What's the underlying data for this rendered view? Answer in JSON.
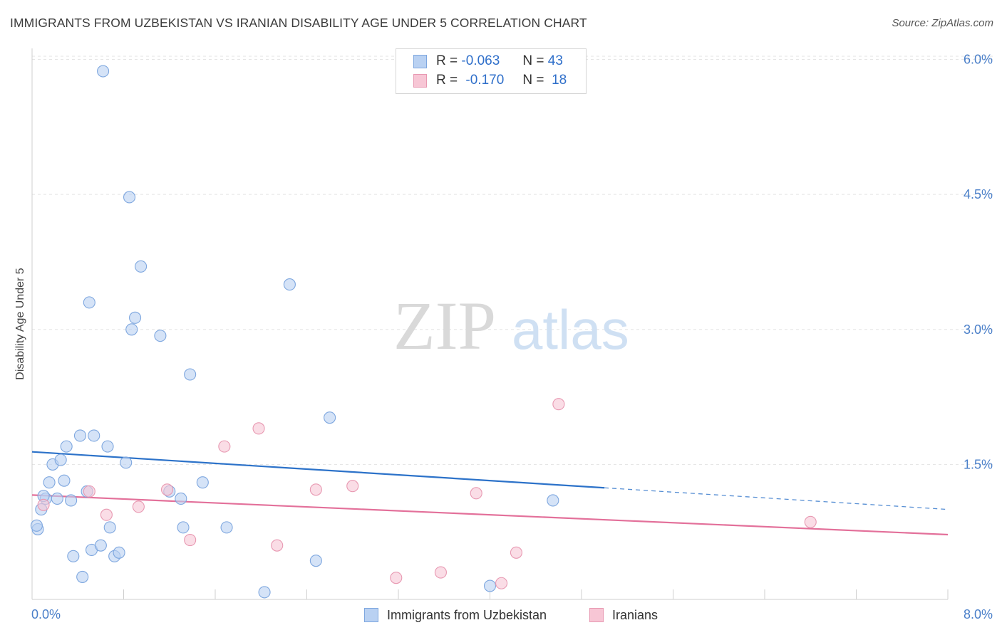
{
  "title": "IMMIGRANTS FROM UZBEKISTAN VS IRANIAN DISABILITY AGE UNDER 5 CORRELATION CHART",
  "source": "Source: ZipAtlas.com",
  "legend": {
    "row1": {
      "r_label": "R =",
      "r_value": "-0.063",
      "n_label": "N =",
      "n_value": "43"
    },
    "row2": {
      "r_label": "R =",
      "r_value": "-0.170",
      "n_label": "N =",
      "n_value": "18"
    }
  },
  "colors": {
    "blue_fill": "#b9d1f2",
    "blue_stroke": "#7ea7df",
    "blue_line": "#2c72c9",
    "pink_fill": "#f7c6d5",
    "pink_stroke": "#e899b2",
    "pink_line": "#e3709a",
    "tick_text": "#4a7fc9"
  },
  "chart_data": {
    "type": "scatter",
    "title": "IMMIGRANTS FROM UZBEKISTAN VS IRANIAN DISABILITY AGE UNDER 5 CORRELATION CHART",
    "xlabel": "",
    "ylabel": "Disability Age Under 5",
    "xlim": [
      0,
      8
    ],
    "ylim": [
      0,
      6.2
    ],
    "x_tick_labels": [
      "0.0%",
      "8.0%"
    ],
    "y_ticks": [
      1.5,
      3.0,
      4.5,
      6.0
    ],
    "y_tick_labels": [
      "1.5%",
      "3.0%",
      "4.5%",
      "6.0%"
    ],
    "grid": true,
    "legend_position": "top-center",
    "series": [
      {
        "name": "Immigrants from Uzbekistan",
        "color": "#b9d1f2",
        "points": [
          [
            0.05,
            0.78
          ],
          [
            0.04,
            0.82
          ],
          [
            0.08,
            1.0
          ],
          [
            0.12,
            1.12
          ],
          [
            0.1,
            1.15
          ],
          [
            0.15,
            1.3
          ],
          [
            0.18,
            1.5
          ],
          [
            0.22,
            1.12
          ],
          [
            0.25,
            1.55
          ],
          [
            0.28,
            1.32
          ],
          [
            0.3,
            1.7
          ],
          [
            0.34,
            1.1
          ],
          [
            0.36,
            0.48
          ],
          [
            0.42,
            1.82
          ],
          [
            0.44,
            0.25
          ],
          [
            0.48,
            1.2
          ],
          [
            0.5,
            3.3
          ],
          [
            0.52,
            0.55
          ],
          [
            0.54,
            1.82
          ],
          [
            0.6,
            0.6
          ],
          [
            0.62,
            5.87
          ],
          [
            0.66,
            1.7
          ],
          [
            0.68,
            0.8
          ],
          [
            0.72,
            0.48
          ],
          [
            0.76,
            0.52
          ],
          [
            0.82,
            1.52
          ],
          [
            0.85,
            4.47
          ],
          [
            0.87,
            3.0
          ],
          [
            0.9,
            3.13
          ],
          [
            0.95,
            3.7
          ],
          [
            1.12,
            2.93
          ],
          [
            1.2,
            1.2
          ],
          [
            1.3,
            1.12
          ],
          [
            1.32,
            0.8
          ],
          [
            1.38,
            2.5
          ],
          [
            1.49,
            1.3
          ],
          [
            1.7,
            0.8
          ],
          [
            2.03,
            0.08
          ],
          [
            2.25,
            3.5
          ],
          [
            2.48,
            0.43
          ],
          [
            2.6,
            2.02
          ],
          [
            4.0,
            0.15
          ],
          [
            4.55,
            1.1
          ]
        ],
        "trend": {
          "x": [
            0.0,
            5.0
          ],
          "y": [
            1.64,
            1.24
          ],
          "dashed_to": [
            8.0,
            1.0
          ]
        }
      },
      {
        "name": "Iranians",
        "color": "#f7c6d5",
        "points": [
          [
            0.1,
            1.05
          ],
          [
            0.5,
            1.2
          ],
          [
            0.65,
            0.94
          ],
          [
            0.93,
            1.03
          ],
          [
            1.18,
            1.22
          ],
          [
            1.38,
            0.66
          ],
          [
            1.68,
            1.7
          ],
          [
            1.98,
            1.9
          ],
          [
            2.14,
            0.6
          ],
          [
            2.48,
            1.22
          ],
          [
            2.8,
            1.26
          ],
          [
            3.18,
            0.24
          ],
          [
            3.57,
            0.3
          ],
          [
            3.88,
            1.18
          ],
          [
            4.1,
            0.18
          ],
          [
            4.23,
            0.52
          ],
          [
            4.6,
            2.17
          ],
          [
            6.8,
            0.86
          ]
        ],
        "trend": {
          "x": [
            0.0,
            8.0
          ],
          "y": [
            1.16,
            0.72
          ]
        }
      }
    ]
  },
  "bottom_legend": {
    "item1": "Immigrants from Uzbekistan",
    "item2": "Iranians"
  },
  "watermark": {
    "part1": "ZIP",
    "part2": "atlas"
  }
}
